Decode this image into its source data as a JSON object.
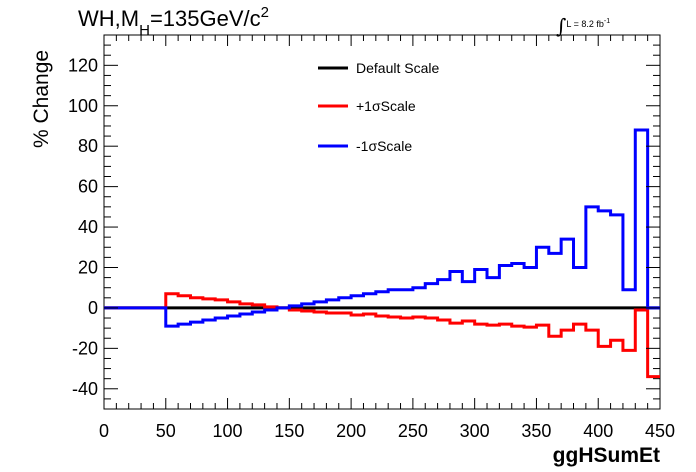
{
  "title": {
    "process": "WH,M",
    "subscript": "H",
    "mass": "=135GeV/c",
    "superscript": "2"
  },
  "luminosity": {
    "integral": "∫",
    "label": "L = 8.2 fb",
    "superscript": "-1"
  },
  "legend": [
    {
      "label": "Default Scale",
      "color": "#000000"
    },
    {
      "label": "+1σScale",
      "color": "#ff0000"
    },
    {
      "label": "-1σScale",
      "color": "#0000ff"
    }
  ],
  "chart_data": {
    "type": "line",
    "xlabel": "ggHSumEt",
    "ylabel": "% Change",
    "xlim": [
      0,
      450
    ],
    "ylim": [
      -50,
      135
    ],
    "xticks": [
      0,
      50,
      100,
      150,
      200,
      250,
      300,
      350,
      400,
      450
    ],
    "yticks": [
      -40,
      -20,
      0,
      20,
      40,
      60,
      80,
      100,
      120
    ],
    "grid": false,
    "bin_edges": [
      0,
      10,
      20,
      30,
      40,
      50,
      60,
      70,
      80,
      90,
      100,
      110,
      120,
      130,
      140,
      150,
      160,
      170,
      180,
      190,
      200,
      210,
      220,
      230,
      240,
      250,
      260,
      270,
      280,
      290,
      300,
      310,
      320,
      330,
      340,
      350,
      360,
      370,
      380,
      390,
      400,
      410,
      420,
      430,
      440,
      450
    ],
    "series": [
      {
        "name": "Default Scale",
        "color": "#000000",
        "values": [
          0,
          0,
          0,
          0,
          0,
          0,
          0,
          0,
          0,
          0,
          0,
          0,
          0,
          0,
          0,
          0,
          0,
          0,
          0,
          0,
          0,
          0,
          0,
          0,
          0,
          0,
          0,
          0,
          0,
          0,
          0,
          0,
          0,
          0,
          0,
          0,
          0,
          0,
          0,
          0,
          0,
          0,
          0,
          0,
          0
        ]
      },
      {
        "name": "+1σScale",
        "color": "#ff0000",
        "values": [
          0,
          0,
          0,
          0,
          0,
          7,
          6,
          5,
          4.5,
          4,
          3,
          2,
          1.5,
          0.5,
          0,
          -1,
          -1.5,
          -2,
          -2.5,
          -2.5,
          -3.5,
          -3,
          -4,
          -4.5,
          -5,
          -4.5,
          -5,
          -6,
          -7.5,
          -6.5,
          -8,
          -8.5,
          -8,
          -9,
          -9.5,
          -8.5,
          -14,
          -11,
          -8,
          -11,
          -19,
          -16,
          -21,
          -1,
          -34
        ]
      },
      {
        "name": "-1σScale",
        "color": "#0000ff",
        "values": [
          0,
          0,
          0,
          0,
          0,
          -9,
          -8,
          -7,
          -6,
          -5,
          -4,
          -3,
          -2,
          -1,
          0,
          1,
          2,
          3,
          4,
          5,
          6,
          7,
          8,
          9,
          9,
          10,
          12,
          14,
          18,
          13,
          19,
          15,
          21,
          22,
          20,
          30,
          27,
          34,
          20,
          50,
          48,
          46,
          9,
          88,
          0
        ]
      }
    ]
  }
}
